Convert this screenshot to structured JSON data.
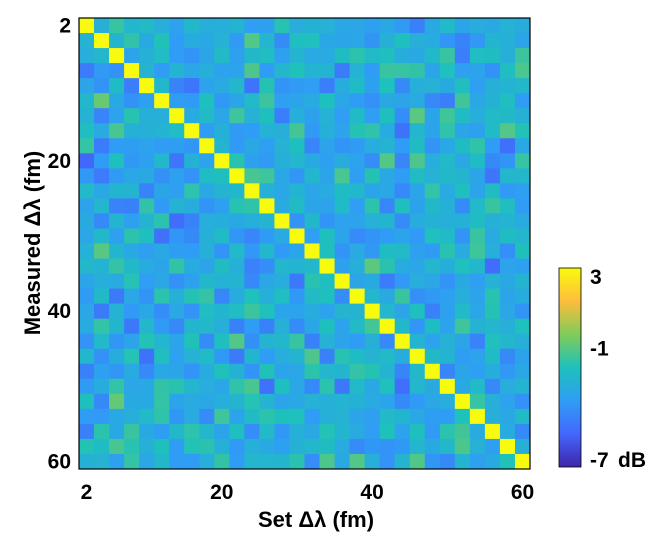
{
  "chart_data": {
    "type": "heatmap",
    "title": "",
    "xlabel": "Set Δλ (fm)",
    "ylabel": "Measured Δλ (fm)",
    "x_ticks": [
      "2",
      "20",
      "40",
      "60"
    ],
    "y_ticks": [
      "2",
      "20",
      "40",
      "60"
    ],
    "x_range": [
      2,
      60
    ],
    "y_range": [
      2,
      60
    ],
    "grid_size": 30,
    "step": 2,
    "diagonal_value_db": 3,
    "off_diagonal_typical_db": -3,
    "colorbar": {
      "min": -7,
      "max": 3,
      "tick_labels": [
        "3",
        "-1",
        "-7"
      ],
      "tick_values": [
        3,
        -1,
        -7
      ],
      "unit": "dB",
      "colormap": [
        "#3e26a8",
        "#4367fd",
        "#2f9df5",
        "#1ec1bb",
        "#81cc59",
        "#fdbd3c",
        "#f9fb0e"
      ]
    }
  }
}
